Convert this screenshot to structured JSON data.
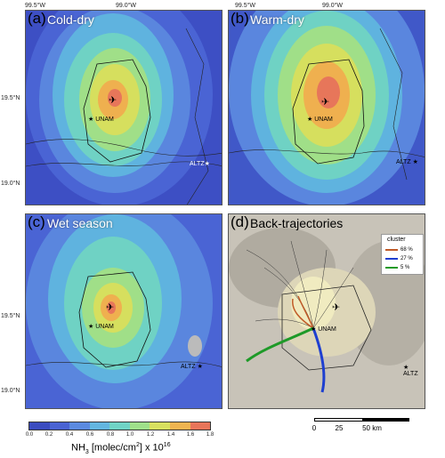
{
  "axes": {
    "top_labels": [
      "99.5°W",
      "99.0°W"
    ],
    "left_labels": [
      "19.5°N",
      "19.0°N"
    ]
  },
  "panels": [
    {
      "letter": "(a)",
      "title": "Cold-dry",
      "sites": [
        "UNAM",
        "ALTZ"
      ]
    },
    {
      "letter": "(b)",
      "title": "Warm-dry",
      "sites": [
        "UNAM",
        "ALTZ"
      ]
    },
    {
      "letter": "(c)",
      "title": "Wet season",
      "sites": [
        "UNAM",
        "ALTZ"
      ]
    },
    {
      "letter": "(d)",
      "title": "Back-trajectories",
      "sites": [
        "UNAM",
        "ALTZ"
      ]
    }
  ],
  "colorbar": {
    "ticks": [
      "0.0",
      "0.2",
      "0.4",
      "0.6",
      "0.8",
      "1.0",
      "1.2",
      "1.4",
      "1.6",
      "1.8"
    ],
    "label": "NH3 [molec/cm2] x 10^16",
    "label_parts": {
      "pre": "NH",
      "sub": "3",
      "mid": "  [molec/cm",
      "sup": "2",
      "post": "] x 10",
      "exp": "16"
    },
    "colors": [
      "#3b4cc0",
      "#4a63d3",
      "#5b8ae0",
      "#63b6e0",
      "#6fd3c5",
      "#9fe08a",
      "#d8e05f",
      "#f0b450",
      "#e8755a"
    ]
  },
  "legend": {
    "title": "cluster",
    "entries": [
      {
        "pct": "68 %",
        "color": "#c05a28"
      },
      {
        "pct": "27 %",
        "color": "#1e3fd0"
      },
      {
        "pct": "5 %",
        "color": "#1e9a28"
      }
    ]
  },
  "scalebar": {
    "ticks": [
      "0",
      "25",
      "50 km"
    ]
  }
}
